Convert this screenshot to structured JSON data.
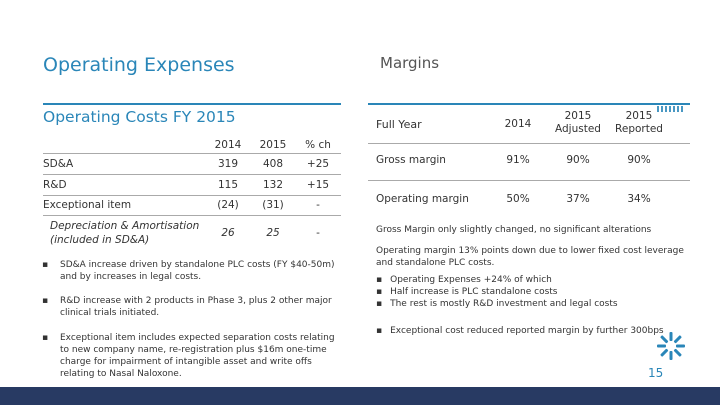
{
  "left": {
    "title": "Operating Expenses",
    "subtitle": "Operating Costs FY 2015",
    "headers": [
      "2014",
      "2015",
      "% ch"
    ],
    "rows": [
      {
        "label": "SD&A",
        "v2014": "319",
        "v2015": "408",
        "pct": "+25",
        "italic": false
      },
      {
        "label": "R&D",
        "v2014": "115",
        "v2015": "132",
        "pct": "+15",
        "italic": false
      },
      {
        "label": "Exceptional item",
        "v2014": "(24)",
        "v2015": "(31)",
        "pct": "-",
        "italic": false
      },
      {
        "label": "Depreciation & Amortisation",
        "label2": "(included in SD&A)",
        "v2014": "26",
        "v2015": "25",
        "pct": "-",
        "italic": true
      }
    ],
    "bullets": [
      {
        "line1": "SD&A increase driven by standalone PLC costs (FY $40-50m)",
        "line2": "and by increases in legal costs."
      },
      {
        "line1": "R&D increase with 2 products in Phase 3, plus 2 other major",
        "line2": "clinical trials initiated."
      },
      {
        "line1": "Exceptional item includes expected separation costs relating",
        "line2": "to new company name, re-registration plus $16m one-time",
        "line3": "charge for impairment of intangible asset and write offs",
        "line4": "relating to Nasal Naloxone."
      }
    ]
  },
  "right": {
    "title": "Margins",
    "headers": {
      "label": "Full Year",
      "c1": "2014",
      "c2a": "2015",
      "c2b": "Adjusted",
      "c3a": "2015",
      "c3b": "Reported"
    },
    "rows": [
      {
        "label": "Gross margin",
        "v1": "91%",
        "v2": "90%",
        "v3": "90%"
      },
      {
        "label": "Operating margin",
        "v1": "50%",
        "v2": "37%",
        "v3": "34%"
      }
    ],
    "note1": "Gross Margin only slightly changed, no significant alterations",
    "note2a": "Operating margin 13% points down due to lower fixed cost leverage",
    "note2b": "and standalone PLC costs.",
    "sub1": "Operating Expenses +24% of which",
    "sub2": "Half increase is PLC standalone costs",
    "sub3": "The rest is mostly R&D investment and legal costs",
    "note3": "Exceptional cost reduced reported margin by further 300bps"
  },
  "footer": {
    "page_number": "15"
  },
  "colors": {
    "accent": "#2a86b8",
    "bar": "#283a63"
  }
}
